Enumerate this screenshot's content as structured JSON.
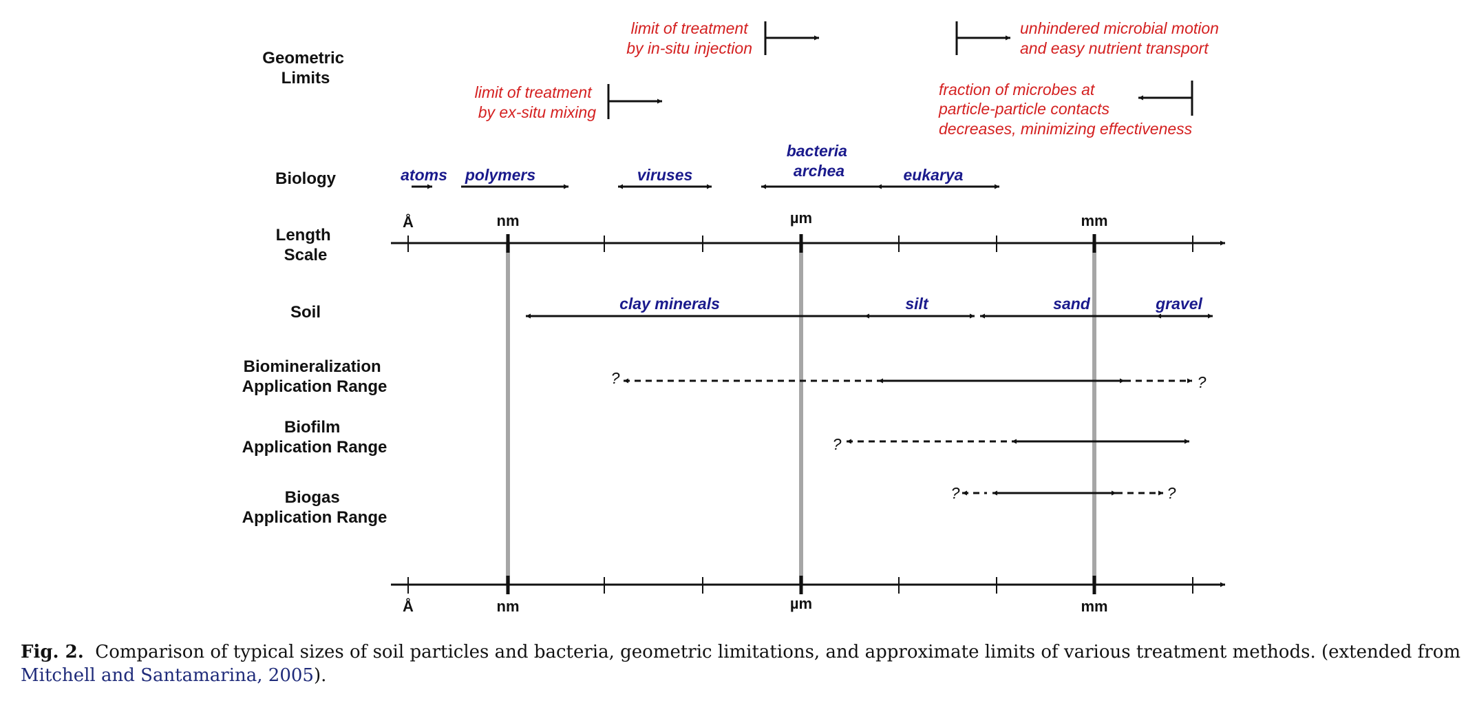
{
  "row_labels": {
    "geometric": [
      "Geometric",
      "Limits"
    ],
    "biology": "Biology",
    "length": [
      "Length",
      "Scale"
    ],
    "soil": "Soil",
    "biomin": [
      "Biomineralization",
      "Application Range"
    ],
    "biofilm": [
      "Biofilm",
      "Application Range"
    ],
    "biogas": [
      "Biogas",
      "Application Range"
    ]
  },
  "geometric_limits": {
    "insitu": [
      "limit  of treatment",
      "by in-situ injection"
    ],
    "exsitu": [
      "limit  of treatment",
      "by ex-situ mixing"
    ],
    "unhindered": [
      "unhindered microbial motion",
      "and easy nutrient transport"
    ],
    "fraction": [
      "fraction of microbes at",
      "particle-particle contacts",
      "decreases, minimizing effectiveness"
    ]
  },
  "biology": {
    "atoms": "atoms",
    "polymers": "polymers",
    "viruses": "viruses",
    "bacteria": [
      "bacteria",
      "archea"
    ],
    "eukarya": "eukarya"
  },
  "scale_labels": {
    "angstrom": "Å",
    "nm": "nm",
    "um": "µm",
    "mm": "mm"
  },
  "soil": {
    "clay": "clay minerals",
    "silt": "silt",
    "sand": "sand",
    "gravel": "gravel"
  },
  "question_mark": "?",
  "colors": {
    "red_text": "#d42020",
    "blue_text": "#1a1a8c",
    "gray_line": "#a6a6a6",
    "caption_link": "#1f2b7a"
  },
  "caption": {
    "label": "Fig. 2.",
    "text": "Comparison of typical sizes of soil particles and bacteria, geometric limitations, and approximate limits of various treatment methods. (extended from ",
    "ref": "Mitchell and Santamarina, 2005",
    "end": ")."
  }
}
